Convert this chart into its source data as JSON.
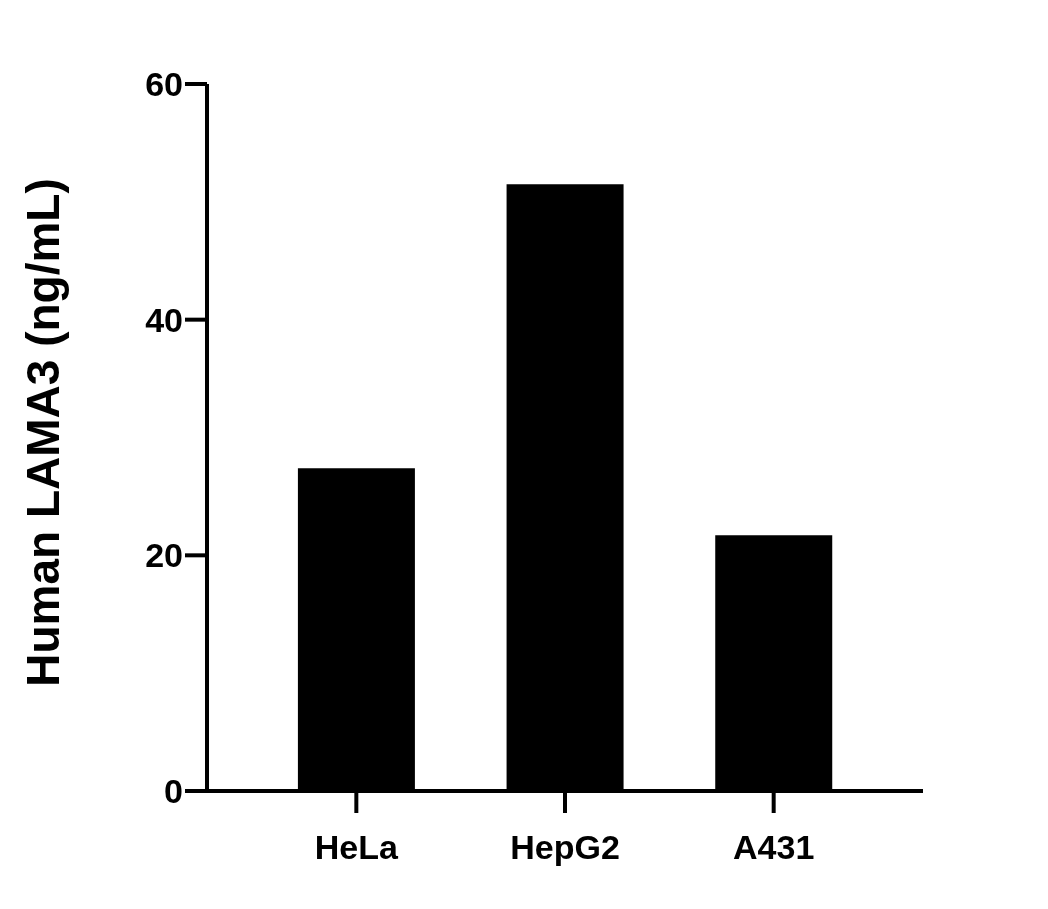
{
  "chart_data": {
    "type": "bar",
    "ylabel": "Human LAMA3 (ng/mL)",
    "categories": [
      "HeLa",
      "HepG2",
      "A431"
    ],
    "values": [
      27.4,
      51.5,
      21.7
    ],
    "color": "#000000",
    "ylim": [
      0,
      60
    ],
    "yticks": [
      0,
      20,
      40,
      60
    ],
    "grid": false,
    "legend": false
  }
}
